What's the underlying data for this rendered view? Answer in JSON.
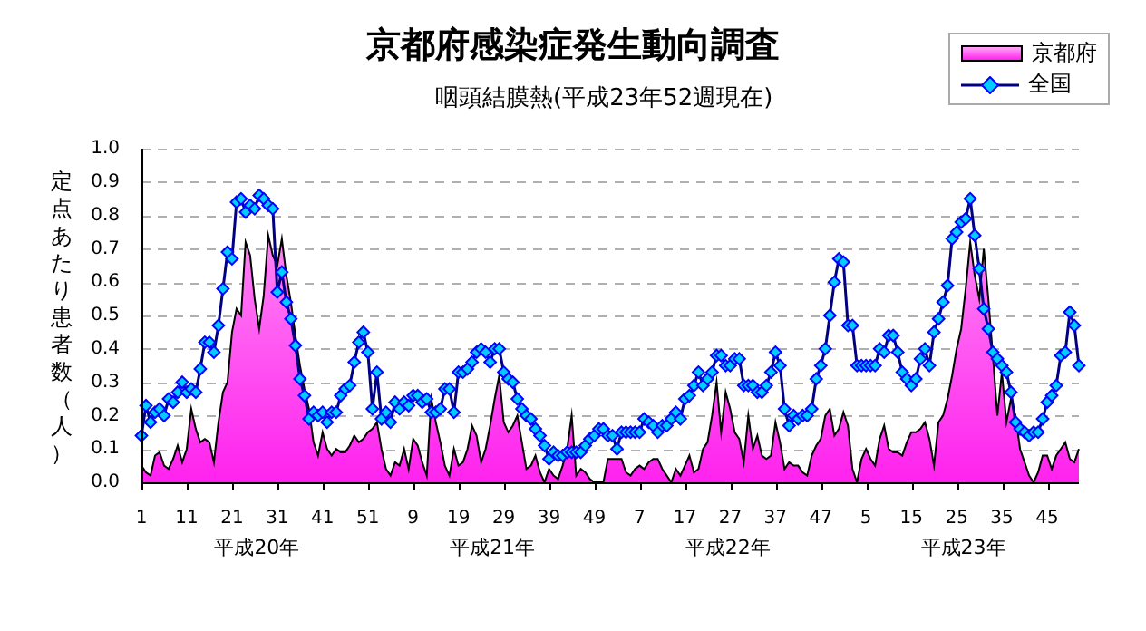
{
  "chart_data": {
    "type": "area",
    "title": "京都府感染症発生動向調査",
    "subtitle": "咽頭結膜熱(平成23年52週現在)",
    "ylabel": "定点あたり患者数（人）",
    "categories": [
      "1",
      null,
      null,
      null,
      null,
      null,
      null,
      null,
      null,
      null,
      "11",
      null,
      null,
      null,
      null,
      null,
      null,
      null,
      null,
      null,
      "21",
      null,
      null,
      null,
      null,
      null,
      null,
      null,
      null,
      null,
      "31",
      null,
      null,
      null,
      null,
      null,
      null,
      null,
      null,
      null,
      "41",
      null,
      null,
      null,
      null,
      null,
      null,
      null,
      null,
      null,
      "51",
      null,
      null,
      null,
      null,
      null,
      null,
      null,
      null,
      null,
      "9",
      null,
      null,
      null,
      null,
      null,
      null,
      null,
      null,
      null,
      "19",
      null,
      null,
      null,
      null,
      null,
      null,
      null,
      null,
      null,
      "29",
      null,
      null,
      null,
      null,
      null,
      null,
      null,
      null,
      null,
      "39",
      null,
      null,
      null,
      null,
      null,
      null,
      null,
      null,
      null,
      "49",
      null,
      null,
      null,
      null,
      null,
      null,
      null,
      null,
      null,
      "7",
      null,
      null,
      null,
      null,
      null,
      null,
      null,
      null,
      null,
      "17",
      null,
      null,
      null,
      null,
      null,
      null,
      null,
      null,
      null,
      "27",
      null,
      null,
      null,
      null,
      null,
      null,
      null,
      null,
      null,
      "37",
      null,
      null,
      null,
      null,
      null,
      null,
      null,
      null,
      null,
      "47",
      null,
      null,
      null,
      null,
      null,
      null,
      null,
      null,
      null,
      "5",
      null,
      null,
      null,
      null,
      null,
      null,
      null,
      null,
      null,
      "15",
      null,
      null,
      null,
      null,
      null,
      null,
      null,
      null,
      null,
      "25",
      null,
      null,
      null,
      null,
      null,
      null,
      null,
      null,
      null,
      "35",
      null,
      null,
      null,
      null,
      null,
      null,
      null,
      null,
      null,
      "45",
      null,
      null,
      null,
      null,
      null,
      null,
      null
    ],
    "series": [
      {
        "name": "京都府",
        "color": "#ff22ee",
        "marker": "none",
        "values": [
          0.05,
          0.03,
          0.02,
          0.08,
          0.09,
          0.05,
          0.04,
          0.07,
          0.11,
          0.06,
          0.1,
          0.22,
          0.16,
          0.12,
          0.13,
          0.12,
          0.06,
          0.18,
          0.27,
          0.3,
          0.45,
          0.52,
          0.5,
          0.72,
          0.68,
          0.55,
          0.46,
          0.56,
          0.74,
          0.68,
          0.65,
          0.73,
          0.62,
          0.54,
          0.44,
          0.35,
          0.28,
          0.22,
          0.12,
          0.08,
          0.15,
          0.1,
          0.08,
          0.1,
          0.09,
          0.09,
          0.11,
          0.14,
          0.12,
          0.13,
          0.15,
          0.16,
          0.18,
          0.1,
          0.04,
          0.02,
          0.06,
          0.05,
          0.1,
          0.04,
          0.13,
          0.11,
          0.06,
          0.02,
          0.25,
          0.18,
          0.12,
          0.05,
          0.02,
          0.1,
          0.05,
          0.06,
          0.1,
          0.17,
          0.14,
          0.06,
          0.1,
          0.17,
          0.25,
          0.32,
          0.18,
          0.15,
          0.17,
          0.2,
          0.12,
          0.04,
          0.05,
          0.08,
          0.03,
          0,
          0.04,
          0.02,
          0.01,
          0.05,
          0.1,
          0.2,
          0.02,
          0.04,
          0.03,
          0.01,
          0,
          0,
          0,
          0.07,
          0.07,
          0.07,
          0.07,
          0.03,
          0.02,
          0.04,
          0.05,
          0.04,
          0.06,
          0.07,
          0.07,
          0.04,
          0.02,
          0,
          0.04,
          0.02,
          0.05,
          0.08,
          0.03,
          0.04,
          0.1,
          0.12,
          0.2,
          0.3,
          0.15,
          0.27,
          0.22,
          0.15,
          0.13,
          0.06,
          0.2,
          0.1,
          0.14,
          0.08,
          0.07,
          0.08,
          0.18,
          0.12,
          0.04,
          0.06,
          0.05,
          0.05,
          0.03,
          0.02,
          0.08,
          0.11,
          0.13,
          0.2,
          0.22,
          0.14,
          0.16,
          0.21,
          0.17,
          0.04,
          0,
          0.07,
          0.1,
          0.07,
          0.05,
          0.13,
          0.17,
          0.1,
          0.09,
          0.09,
          0.08,
          0.12,
          0.15,
          0.15,
          0.16,
          0.18,
          0.13,
          0.05,
          0.18,
          0.2,
          0.25,
          0.32,
          0.4,
          0.46,
          0.58,
          0.72,
          0.62,
          0.55,
          0.7,
          0.55,
          0.38,
          0.2,
          0.33,
          0.18,
          0.25,
          0.2,
          0.1,
          0.06,
          0.02,
          0,
          0.03,
          0.08,
          0.08,
          0.04,
          0.08,
          0.1,
          0.12,
          0.07,
          0.06,
          0.1
        ]
      },
      {
        "name": "全国",
        "type": "line",
        "color": "#00ccff",
        "marker": "diamond",
        "values": [
          0.14,
          0.23,
          0.18,
          0.21,
          0.22,
          0.2,
          0.25,
          0.24,
          0.27,
          0.3,
          0.27,
          0.28,
          0.27,
          0.34,
          0.42,
          0.42,
          0.39,
          0.47,
          0.58,
          0.69,
          0.67,
          0.84,
          0.85,
          0.81,
          0.83,
          0.82,
          0.86,
          0.85,
          0.83,
          0.82,
          0.57,
          0.63,
          0.54,
          0.49,
          0.41,
          0.31,
          0.26,
          0.19,
          0.21,
          0.2,
          0.21,
          0.18,
          0.21,
          0.21,
          0.26,
          0.28,
          0.29,
          0.36,
          0.42,
          0.45,
          0.39,
          0.22,
          0.33,
          0.19,
          0.21,
          0.18,
          0.24,
          0.22,
          0.24,
          0.23,
          0.26,
          0.26,
          0.24,
          0.25,
          0.21,
          0.21,
          0.22,
          0.28,
          0.28,
          0.21,
          0.33,
          0.33,
          0.34,
          0.36,
          0.39,
          0.4,
          0.39,
          0.36,
          0.4,
          0.4,
          0.33,
          0.31,
          0.3,
          0.25,
          0.22,
          0.2,
          0.19,
          0.16,
          0.14,
          0.11,
          0.07,
          0.09,
          0.08,
          0.08,
          0.09,
          0.09,
          0.09,
          0.09,
          0.11,
          0.13,
          0.14,
          0.16,
          0.16,
          0.14,
          0.14,
          0.1,
          0.15,
          0.15,
          0.15,
          0.15,
          0.15,
          0.19,
          0.18,
          0.17,
          0.15,
          0.17,
          0.17,
          0.19,
          0.21,
          0.19,
          0.25,
          0.26,
          0.29,
          0.33,
          0.29,
          0.31,
          0.33,
          0.38,
          0.38,
          0.35,
          0.35,
          0.37,
          0.37,
          0.29,
          0.29,
          0.29,
          0.27,
          0.27,
          0.29,
          0.33,
          0.39,
          0.35,
          0.22,
          0.17,
          0.2,
          0.19,
          0.2,
          0.2,
          0.22,
          0.31,
          0.35,
          0.4,
          0.5,
          0.6,
          0.67,
          0.66,
          0.47,
          0.47,
          0.35,
          0.35,
          0.35,
          0.35,
          0.35,
          0.4,
          0.39,
          0.44,
          0.44,
          0.39,
          0.33,
          0.31,
          0.29,
          0.31,
          0.37,
          0.4,
          0.35,
          0.45,
          0.49,
          0.54,
          0.59,
          0.73,
          0.75,
          0.78,
          0.79,
          0.85,
          0.74,
          0.64,
          0.52,
          0.46,
          0.39,
          0.37,
          0.35,
          0.33,
          0.27,
          0.18,
          0.16,
          0.15,
          0.14,
          0.15,
          0.15,
          0.19,
          0.24,
          0.26,
          0.29,
          0.38,
          0.39,
          0.51,
          0.47,
          0.35
        ]
      }
    ],
    "ylim": [
      0,
      1
    ],
    "yticks": [
      {
        "value": 0,
        "label": "0.0"
      },
      {
        "value": 0.1,
        "label": "0.1"
      },
      {
        "value": 0.2,
        "label": "0.2"
      },
      {
        "value": 0.3,
        "label": "0.3"
      },
      {
        "value": 0.4,
        "label": "0.4"
      },
      {
        "value": 0.5,
        "label": "0.5"
      },
      {
        "value": 0.6,
        "label": "0.6"
      },
      {
        "value": 0.7,
        "label": "0.7"
      },
      {
        "value": 0.8,
        "label": "0.8"
      },
      {
        "value": 0.9,
        "label": "0.9"
      },
      {
        "value": 1,
        "label": "1.0"
      }
    ],
    "annotations": [
      "平成20年",
      "平成21年",
      "平成22年",
      "平成23年"
    ],
    "grid": "y",
    "legend": "top right"
  }
}
